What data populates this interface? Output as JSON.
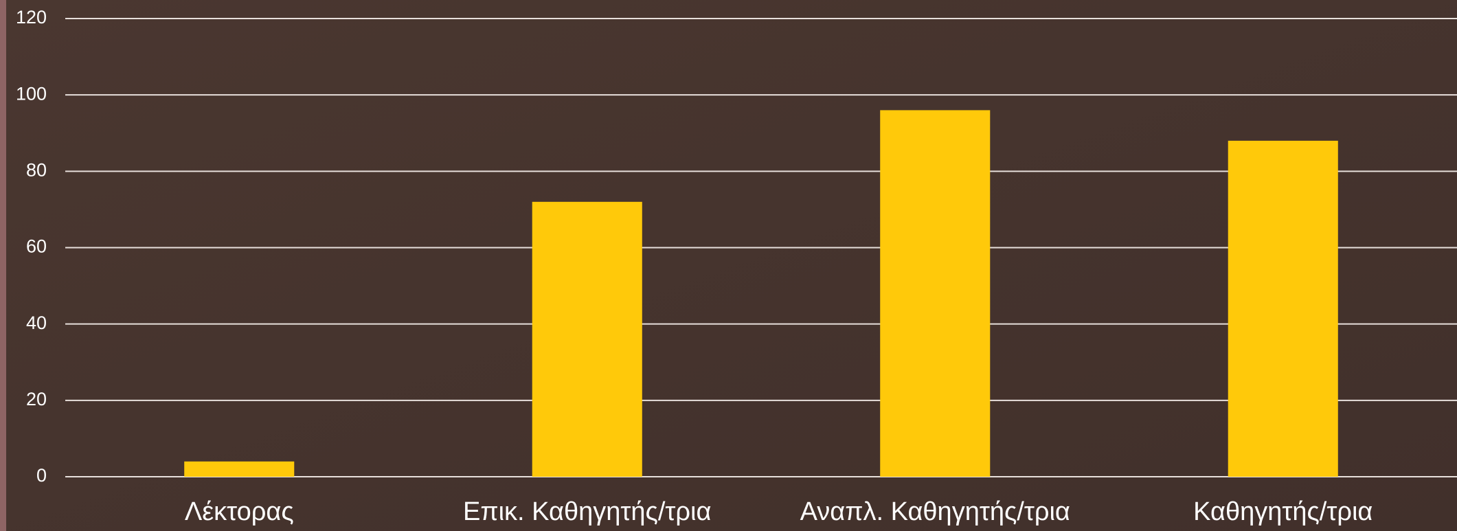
{
  "chart_data": {
    "type": "bar",
    "categories": [
      "Λέκτορας",
      "Επικ. Καθηγητής/τρια",
      "Αναπλ. Καθηγητής/τρια",
      "Καθηγητής/τρια"
    ],
    "values": [
      4,
      72,
      96,
      88
    ],
    "color": "#ffc90a",
    "ylim": [
      0,
      120
    ],
    "yticks": [
      0,
      20,
      40,
      60,
      80,
      100,
      120
    ],
    "grid": true
  }
}
